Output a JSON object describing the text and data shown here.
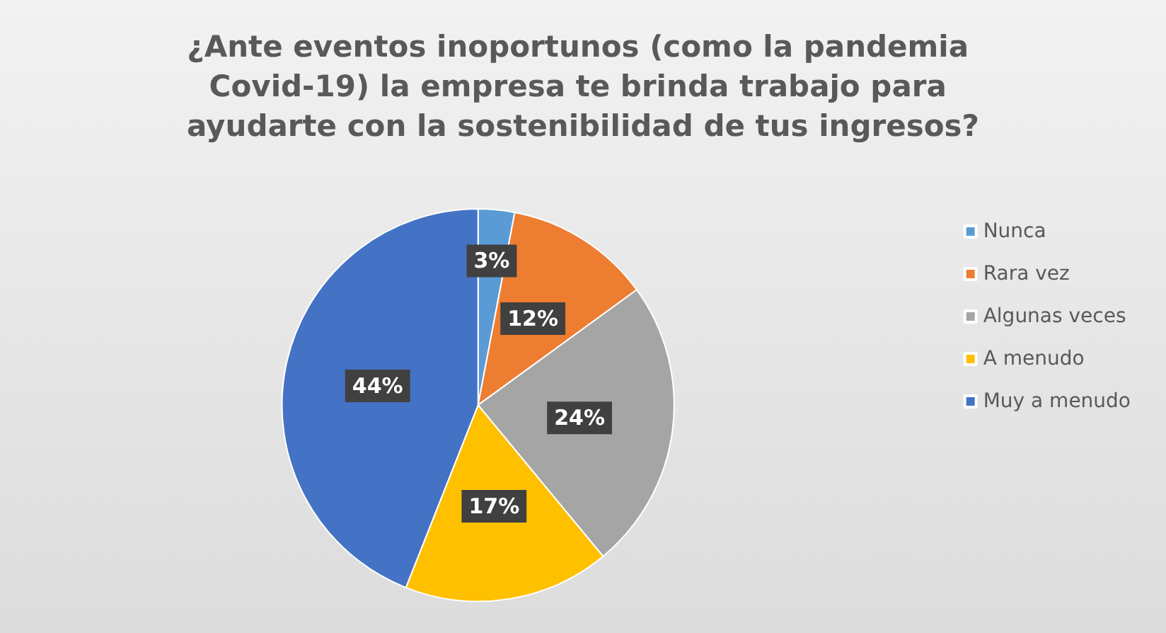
{
  "chart_data": {
    "type": "pie",
    "title": "¿Ante eventos inoportunos (como la pandemia Covid-19) la empresa te brinda trabajo para ayudarte con la sostenibilidad de tus ingresos?",
    "categories": [
      "Nunca",
      "Rara vez",
      "Algunas veces",
      "A menudo",
      "Muy a menudo"
    ],
    "values": [
      3,
      12,
      24,
      17,
      44
    ],
    "colors": [
      "#5b9bd5",
      "#ed7d31",
      "#a5a5a5",
      "#ffc000",
      "#4472c4"
    ],
    "value_labels": [
      "3%",
      "12%",
      "24%",
      "17%",
      "44%"
    ],
    "legend": "right"
  }
}
